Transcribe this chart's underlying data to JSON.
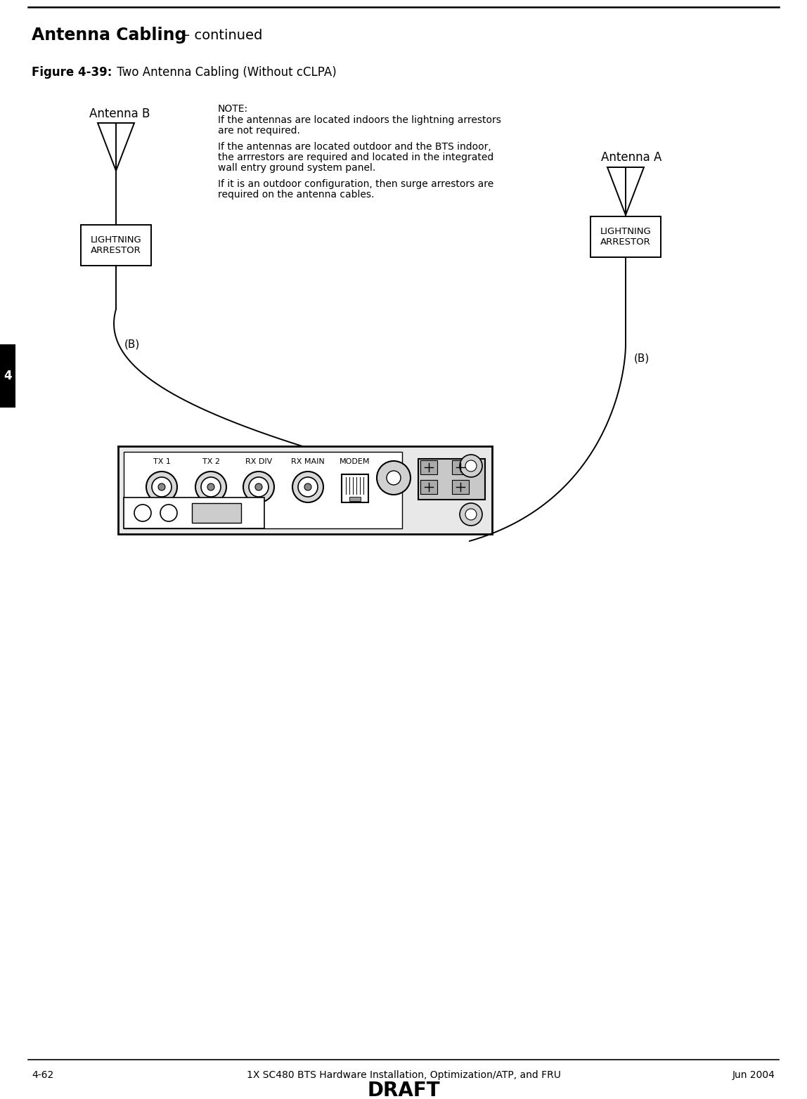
{
  "title_bold": "Antenna Cabling",
  "title_regular": " – continued",
  "figure_label_bold": "Figure 4-39:",
  "figure_label_regular": " Two Antenna Cabling (Without cCLPA)",
  "note_title": "NOTE:",
  "note_lines": [
    "If the antennas are located indoors the lightning arrestors",
    "are not required.",
    "",
    "If the antennas are located outdoor and the BTS indoor,",
    "the arrrestors are required and located in the integrated",
    "wall entry ground system panel.",
    "",
    "If it is an outdoor configuration, then surge arrestors are",
    "required on the antenna cables."
  ],
  "antenna_b_label": "Antenna B",
  "antenna_a_label": "Antenna A",
  "lightning_label": "LIGHTNING\nARRESTOR",
  "b_label": "(B)",
  "footer_left": "4-62",
  "footer_center": "1X SC480 BTS Hardware Installation, Optimization/ATP, and FRU",
  "footer_right": "Jun 2004",
  "footer_draft": "DRAFT",
  "page_number": "4",
  "bg_color": "#ffffff",
  "line_color": "#000000"
}
